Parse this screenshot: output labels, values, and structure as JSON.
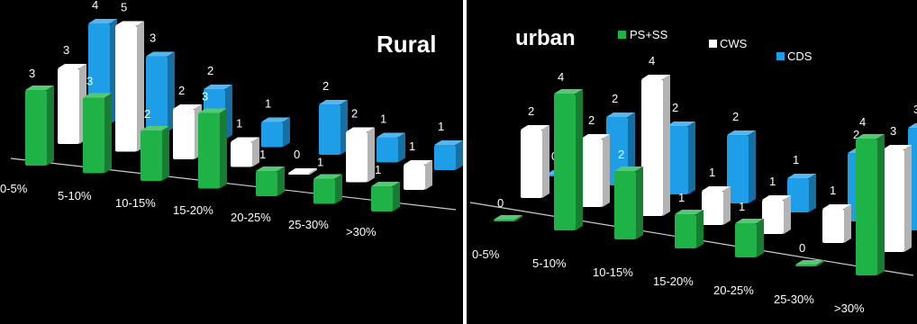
{
  "chart_data": [
    {
      "type": "bar",
      "title": "Rural",
      "categories": [
        "0-5%",
        "5-10%",
        "10-15%",
        "15-20%",
        "20-25%",
        "25-30%",
        ">30%"
      ],
      "series": [
        {
          "values": [
            3,
            3,
            2,
            3,
            1,
            1,
            1
          ],
          "color": "#1fb347"
        },
        {
          "values": [
            3,
            5,
            2,
            1,
            0,
            2,
            1
          ],
          "color": "#ffffff"
        },
        {
          "values": [
            4,
            3,
            2,
            1,
            2,
            1,
            1
          ],
          "color": "#1f9ee8"
        }
      ],
      "ylim": [
        0,
        5
      ],
      "grid": false,
      "legend": false
    },
    {
      "type": "bar",
      "title": "urban",
      "categories": [
        "0-5%",
        "5-10%",
        "10-15%",
        "15-20%",
        "20-25%",
        "25-30%",
        ">30%"
      ],
      "series": [
        {
          "name": "PS+SS",
          "values": [
            0,
            4,
            2,
            1,
            1,
            0,
            4
          ],
          "color": "#1fb347"
        },
        {
          "name": "CWS",
          "values": [
            2,
            2,
            4,
            1,
            1,
            1,
            3
          ],
          "color": "#ffffff"
        },
        {
          "name": "CDS",
          "values": [
            0,
            2,
            2,
            2,
            1,
            2,
            3
          ],
          "color": "#1f9ee8"
        }
      ],
      "ylim": [
        0,
        4
      ],
      "grid": false,
      "legend": "top-center"
    }
  ]
}
